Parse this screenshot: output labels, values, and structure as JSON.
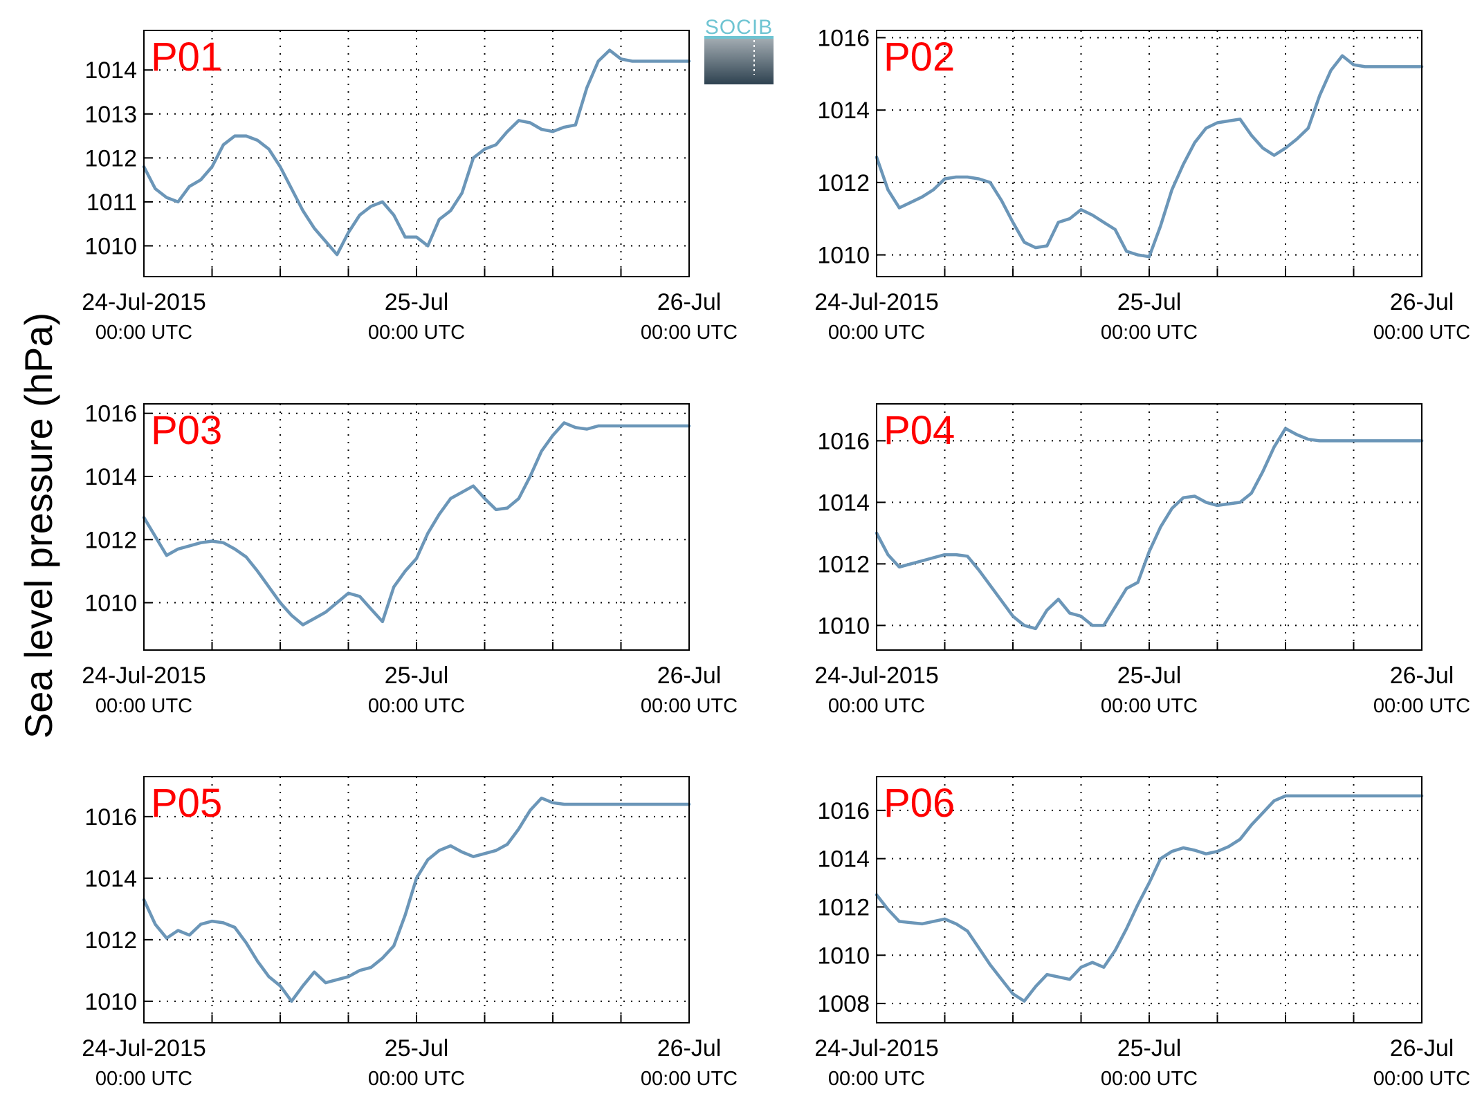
{
  "ylabel": "Sea level pressure (hPa)",
  "logo_text": "SOCIB",
  "colors": {
    "line": "#6b96b8",
    "title": "#ff0000",
    "axis": "#000000",
    "grid": "#000000",
    "logo_accent": "#6ec4d2"
  },
  "x_date_labels": [
    "24-Jul-2015",
    "25-Jul",
    "26-Jul"
  ],
  "x_time_labels": [
    "00:00 UTC",
    "00:00 UTC",
    "00:00 UTC"
  ],
  "chart_data": [
    {
      "type": "line",
      "title": "P01",
      "xlabel": "",
      "ylabel": "Sea level pressure (hPa)",
      "x_unit": "hours since 24-Jul-2015 00:00 UTC",
      "xlim": [
        0,
        48
      ],
      "ylim": [
        1009.3,
        1014.9
      ],
      "yticks": [
        1010,
        1011,
        1012,
        1013,
        1014
      ],
      "grid": true,
      "x": [
        0,
        1,
        2,
        3,
        4,
        5,
        6,
        7,
        8,
        9,
        10,
        11,
        12,
        13,
        14,
        15,
        16,
        17,
        18,
        19,
        20,
        21,
        22,
        23,
        24,
        25,
        26,
        27,
        28,
        29,
        30,
        31,
        32,
        33,
        34,
        35,
        36,
        37,
        38,
        39,
        40,
        41,
        42,
        43,
        44,
        45,
        46,
        47,
        48
      ],
      "values": [
        1011.8,
        1011.3,
        1011.1,
        1011.0,
        1011.35,
        1011.5,
        1011.8,
        1012.3,
        1012.5,
        1012.5,
        1012.4,
        1012.2,
        1011.8,
        1011.3,
        1010.8,
        1010.4,
        1010.1,
        1009.8,
        1010.3,
        1010.7,
        1010.9,
        1011.0,
        1010.7,
        1010.2,
        1010.2,
        1010.0,
        1010.6,
        1010.8,
        1011.2,
        1012.0,
        1012.2,
        1012.3,
        1012.6,
        1012.85,
        1012.8,
        1012.65,
        1012.6,
        1012.7,
        1012.75,
        1013.6,
        1014.2,
        1014.45,
        1014.25,
        1014.2,
        1014.2,
        1014.2,
        1014.2,
        1014.2,
        1014.2
      ]
    },
    {
      "type": "line",
      "title": "P02",
      "xlabel": "",
      "ylabel": "Sea level pressure (hPa)",
      "x_unit": "hours since 24-Jul-2015 00:00 UTC",
      "xlim": [
        0,
        48
      ],
      "ylim": [
        1009.4,
        1016.2
      ],
      "yticks": [
        1010,
        1012,
        1014,
        1016
      ],
      "grid": true,
      "x": [
        0,
        1,
        2,
        3,
        4,
        5,
        6,
        7,
        8,
        9,
        10,
        11,
        12,
        13,
        14,
        15,
        16,
        17,
        18,
        19,
        20,
        21,
        22,
        23,
        24,
        25,
        26,
        27,
        28,
        29,
        30,
        31,
        32,
        33,
        34,
        35,
        36,
        37,
        38,
        39,
        40,
        41,
        42,
        43,
        44,
        45,
        46,
        47,
        48
      ],
      "values": [
        1012.7,
        1011.8,
        1011.3,
        1011.45,
        1011.6,
        1011.8,
        1012.1,
        1012.15,
        1012.15,
        1012.1,
        1012.0,
        1011.5,
        1010.9,
        1010.35,
        1010.2,
        1010.25,
        1010.9,
        1011.0,
        1011.25,
        1011.1,
        1010.9,
        1010.7,
        1010.1,
        1010.0,
        1009.95,
        1010.8,
        1011.8,
        1012.5,
        1013.1,
        1013.5,
        1013.65,
        1013.7,
        1013.75,
        1013.3,
        1012.95,
        1012.75,
        1012.95,
        1013.2,
        1013.5,
        1014.4,
        1015.1,
        1015.5,
        1015.25,
        1015.2,
        1015.2,
        1015.2,
        1015.2,
        1015.2,
        1015.2
      ]
    },
    {
      "type": "line",
      "title": "P03",
      "xlabel": "",
      "ylabel": "Sea level pressure (hPa)",
      "x_unit": "hours since 24-Jul-2015 00:00 UTC",
      "xlim": [
        0,
        48
      ],
      "ylim": [
        1008.5,
        1016.3
      ],
      "yticks": [
        1010,
        1012,
        1014,
        1016
      ],
      "grid": true,
      "x": [
        0,
        1,
        2,
        3,
        4,
        5,
        6,
        7,
        8,
        9,
        10,
        11,
        12,
        13,
        14,
        15,
        16,
        17,
        18,
        19,
        20,
        21,
        22,
        23,
        24,
        25,
        26,
        27,
        28,
        29,
        30,
        31,
        32,
        33,
        34,
        35,
        36,
        37,
        38,
        39,
        40,
        41,
        42,
        43,
        44,
        45,
        46,
        47,
        48
      ],
      "values": [
        1012.7,
        1012.1,
        1011.5,
        1011.7,
        1011.8,
        1011.9,
        1011.95,
        1011.9,
        1011.7,
        1011.45,
        1011.0,
        1010.5,
        1010.0,
        1009.6,
        1009.3,
        1009.5,
        1009.7,
        1010.0,
        1010.3,
        1010.2,
        1009.8,
        1009.4,
        1010.5,
        1011.0,
        1011.4,
        1012.2,
        1012.8,
        1013.3,
        1013.5,
        1013.7,
        1013.3,
        1012.95,
        1013.0,
        1013.3,
        1014.0,
        1014.8,
        1015.3,
        1015.7,
        1015.55,
        1015.5,
        1015.6,
        1015.6,
        1015.6,
        1015.6,
        1015.6,
        1015.6,
        1015.6,
        1015.6,
        1015.6
      ]
    },
    {
      "type": "line",
      "title": "P04",
      "xlabel": "",
      "ylabel": "Sea level pressure (hPa)",
      "x_unit": "hours since 24-Jul-2015 00:00 UTC",
      "xlim": [
        0,
        48
      ],
      "ylim": [
        1009.2,
        1017.2
      ],
      "yticks": [
        1010,
        1012,
        1014,
        1016
      ],
      "grid": true,
      "x": [
        0,
        1,
        2,
        3,
        4,
        5,
        6,
        7,
        8,
        9,
        10,
        11,
        12,
        13,
        14,
        15,
        16,
        17,
        18,
        19,
        20,
        21,
        22,
        23,
        24,
        25,
        26,
        27,
        28,
        29,
        30,
        31,
        32,
        33,
        34,
        35,
        36,
        37,
        38,
        39,
        40,
        41,
        42,
        43,
        44,
        45,
        46,
        47,
        48
      ],
      "values": [
        1013.0,
        1012.3,
        1011.9,
        1012.0,
        1012.1,
        1012.2,
        1012.3,
        1012.3,
        1012.25,
        1011.8,
        1011.3,
        1010.8,
        1010.3,
        1010.0,
        1009.9,
        1010.5,
        1010.85,
        1010.4,
        1010.3,
        1010.0,
        1010.0,
        1010.6,
        1011.2,
        1011.4,
        1012.4,
        1013.2,
        1013.8,
        1014.15,
        1014.2,
        1014.0,
        1013.9,
        1013.95,
        1014.0,
        1014.3,
        1015.0,
        1015.8,
        1016.4,
        1016.2,
        1016.05,
        1016.0,
        1016.0,
        1016.0,
        1016.0,
        1016.0,
        1016.0,
        1016.0,
        1016.0,
        1016.0,
        1016.0
      ]
    },
    {
      "type": "line",
      "title": "P05",
      "xlabel": "",
      "ylabel": "Sea level pressure (hPa)",
      "x_unit": "hours since 24-Jul-2015 00:00 UTC",
      "xlim": [
        0,
        48
      ],
      "ylim": [
        1009.3,
        1017.3
      ],
      "yticks": [
        1010,
        1012,
        1014,
        1016
      ],
      "grid": true,
      "x": [
        0,
        1,
        2,
        3,
        4,
        5,
        6,
        7,
        8,
        9,
        10,
        11,
        12,
        13,
        14,
        15,
        16,
        17,
        18,
        19,
        20,
        21,
        22,
        23,
        24,
        25,
        26,
        27,
        28,
        29,
        30,
        31,
        32,
        33,
        34,
        35,
        36,
        37,
        38,
        39,
        40,
        41,
        42,
        43,
        44,
        45,
        46,
        47,
        48
      ],
      "values": [
        1013.3,
        1012.5,
        1012.05,
        1012.3,
        1012.15,
        1012.5,
        1012.6,
        1012.55,
        1012.4,
        1011.9,
        1011.3,
        1010.8,
        1010.5,
        1010.0,
        1010.5,
        1010.95,
        1010.6,
        1010.7,
        1010.8,
        1011.0,
        1011.1,
        1011.4,
        1011.8,
        1012.8,
        1014.0,
        1014.6,
        1014.9,
        1015.05,
        1014.85,
        1014.7,
        1014.8,
        1014.9,
        1015.1,
        1015.6,
        1016.2,
        1016.6,
        1016.45,
        1016.4,
        1016.4,
        1016.4,
        1016.4,
        1016.4,
        1016.4,
        1016.4,
        1016.4,
        1016.4,
        1016.4,
        1016.4,
        1016.4
      ]
    },
    {
      "type": "line",
      "title": "P06",
      "xlabel": "",
      "ylabel": "Sea level pressure (hPa)",
      "x_unit": "hours since 24-Jul-2015 00:00 UTC",
      "xlim": [
        0,
        48
      ],
      "ylim": [
        1007.2,
        1017.4
      ],
      "yticks": [
        1008,
        1010,
        1012,
        1014,
        1016
      ],
      "grid": true,
      "x": [
        0,
        1,
        2,
        3,
        4,
        5,
        6,
        7,
        8,
        9,
        10,
        11,
        12,
        13,
        14,
        15,
        16,
        17,
        18,
        19,
        20,
        21,
        22,
        23,
        24,
        25,
        26,
        27,
        28,
        29,
        30,
        31,
        32,
        33,
        34,
        35,
        36,
        37,
        38,
        39,
        40,
        41,
        42,
        43,
        44,
        45,
        46,
        47,
        48
      ],
      "values": [
        1012.5,
        1011.9,
        1011.4,
        1011.35,
        1011.3,
        1011.4,
        1011.5,
        1011.3,
        1011.0,
        1010.3,
        1009.6,
        1009.0,
        1008.4,
        1008.1,
        1008.7,
        1009.2,
        1009.1,
        1009.0,
        1009.5,
        1009.7,
        1009.5,
        1010.2,
        1011.1,
        1012.1,
        1013.0,
        1014.0,
        1014.3,
        1014.45,
        1014.35,
        1014.2,
        1014.3,
        1014.5,
        1014.8,
        1015.4,
        1015.9,
        1016.4,
        1016.6,
        1016.6,
        1016.6,
        1016.6,
        1016.6,
        1016.6,
        1016.6,
        1016.6,
        1016.6,
        1016.6,
        1016.6,
        1016.6,
        1016.6
      ]
    }
  ]
}
